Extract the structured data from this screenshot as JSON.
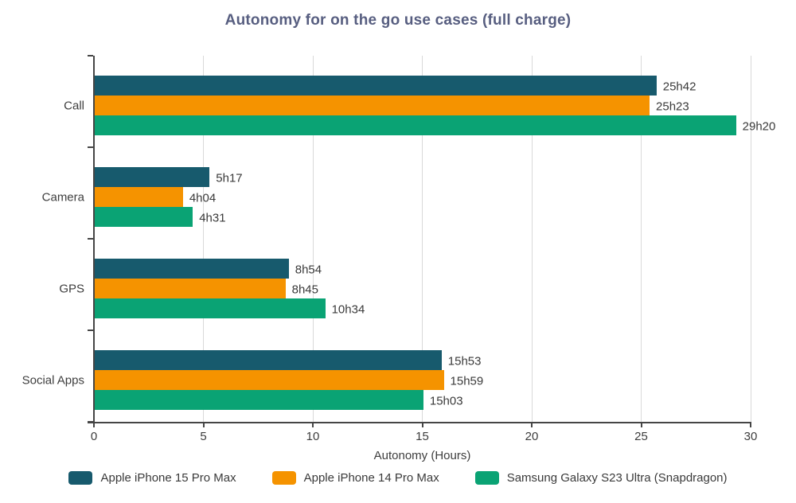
{
  "title": "Autonomy for on the go use cases (full charge)",
  "chart_data": {
    "type": "bar",
    "orientation": "horizontal",
    "title": "Autonomy for on the go use cases (full charge)",
    "categories": [
      "Call",
      "Camera",
      "GPS",
      "Social Apps"
    ],
    "series": [
      {
        "name": "Apple iPhone 15 Pro Max",
        "color": "#175a6d",
        "values": [
          25.7,
          5.283,
          8.9,
          15.883
        ],
        "value_labels": [
          "25h42",
          "5h17",
          "8h54",
          "15h53"
        ]
      },
      {
        "name": "Apple iPhone 14 Pro Max",
        "color": "#f59300",
        "values": [
          25.383,
          4.067,
          8.75,
          15.983
        ],
        "value_labels": [
          "25h23",
          "4h04",
          "8h45",
          "15h59"
        ]
      },
      {
        "name": "Samsung Galaxy S23 Ultra (Snapdragon)",
        "color": "#0aa374",
        "values": [
          29.333,
          4.517,
          10.567,
          15.05
        ],
        "value_labels": [
          "29h20",
          "4h31",
          "10h34",
          "15h03"
        ]
      }
    ],
    "xlabel": "Autonomy (Hours)",
    "ylabel": "",
    "xlim": [
      0,
      30
    ],
    "xticks": [
      0,
      5,
      10,
      15,
      20,
      25,
      30
    ],
    "grid": true,
    "legend_position": "bottom"
  },
  "colors": {
    "title": "#575e80",
    "text": "#3d3d3d",
    "axis": "#454545",
    "grid": "#d9d9d9"
  }
}
